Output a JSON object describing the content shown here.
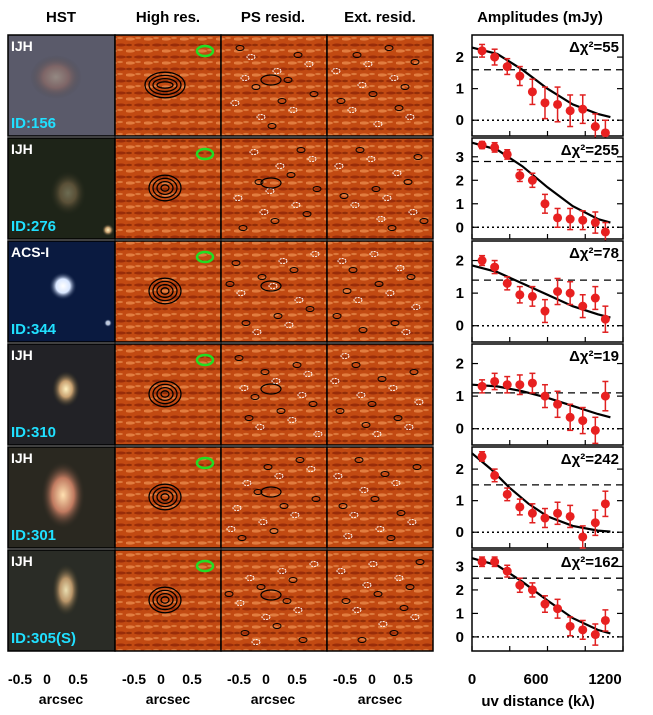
{
  "column_headers": [
    "HST",
    "High res.",
    "PS resid.",
    "Ext. resid.",
    "Amplitudes (mJy)"
  ],
  "x_axis": {
    "image_ticks": [
      "-0.5",
      "0",
      "0.5"
    ],
    "image_label": "arcsec",
    "uv_ticks": [
      "0",
      "600",
      "1200"
    ],
    "uv_label": "uv distance (kλ)"
  },
  "rows": [
    {
      "band": "IJH",
      "id_label": "ID:156",
      "dchi2": "Δχ²=55",
      "hst_color": "#5a5a6a",
      "yticks": [
        "0",
        "1",
        "2"
      ]
    },
    {
      "band": "IJH",
      "id_label": "ID:276",
      "dchi2": "Δχ²=255",
      "hst_color": "#1e2418",
      "yticks": [
        "0",
        "1",
        "2",
        "3"
      ]
    },
    {
      "band": "ACS-I",
      "id_label": "ID:344",
      "dchi2": "Δχ²=78",
      "hst_color": "#0a1a40",
      "yticks": [
        "0",
        "1",
        "2"
      ]
    },
    {
      "band": "IJH",
      "id_label": "ID:310",
      "dchi2": "Δχ²=19",
      "hst_color": "#222226",
      "yticks": [
        "0",
        "1",
        "2"
      ]
    },
    {
      "band": "IJH",
      "id_label": "ID:301",
      "dchi2": "Δχ²=242",
      "hst_color": "#2a2820",
      "yticks": [
        "0",
        "1",
        "2"
      ]
    },
    {
      "band": "IJH",
      "id_label": "ID:305(S)",
      "dchi2": "Δχ²=162",
      "hst_color": "#2a2c26",
      "yticks": [
        "0",
        "1",
        "2",
        "3"
      ]
    }
  ],
  "chart_data": {
    "type": "scatter",
    "xlabel": "uv distance (kλ)",
    "ylabel": "Amplitudes (mJy)",
    "xlim": [
      0,
      1200
    ],
    "panels": [
      {
        "id": "ID:156",
        "ylim": [
          -0.5,
          2.7
        ],
        "dashed_level": 1.6,
        "x": [
          80,
          180,
          280,
          380,
          480,
          580,
          680,
          780,
          880,
          980,
          1060
        ],
        "y": [
          2.2,
          2.0,
          1.7,
          1.4,
          0.9,
          0.55,
          0.5,
          0.3,
          0.35,
          -0.2,
          -0.4
        ],
        "err": [
          0.2,
          0.25,
          0.25,
          0.3,
          0.4,
          0.5,
          0.55,
          0.5,
          0.45,
          0.4,
          0.4
        ],
        "model": [
          [
            0,
            2.3
          ],
          [
            200,
            2.1
          ],
          [
            400,
            1.6
          ],
          [
            600,
            1.0
          ],
          [
            800,
            0.5
          ],
          [
            1000,
            0.2
          ],
          [
            1100,
            0.1
          ]
        ]
      },
      {
        "id": "ID:276",
        "ylim": [
          -0.5,
          3.8
        ],
        "dashed_level": 2.8,
        "x": [
          80,
          180,
          280,
          380,
          480,
          580,
          680,
          780,
          880,
          980,
          1060
        ],
        "y": [
          3.5,
          3.4,
          3.1,
          2.2,
          2.0,
          1.0,
          0.4,
          0.35,
          0.3,
          0.2,
          -0.2
        ],
        "err": [
          0.15,
          0.2,
          0.2,
          0.25,
          0.3,
          0.4,
          0.4,
          0.45,
          0.4,
          0.45,
          0.4
        ],
        "model": [
          [
            0,
            3.6
          ],
          [
            200,
            3.3
          ],
          [
            400,
            2.6
          ],
          [
            600,
            1.7
          ],
          [
            800,
            0.9
          ],
          [
            1000,
            0.35
          ],
          [
            1100,
            0.2
          ]
        ]
      },
      {
        "id": "ID:344",
        "ylim": [
          -0.5,
          2.6
        ],
        "dashed_level": 1.4,
        "x": [
          80,
          180,
          280,
          380,
          480,
          580,
          680,
          780,
          880,
          980,
          1060
        ],
        "y": [
          2.0,
          1.8,
          1.3,
          0.95,
          0.9,
          0.45,
          1.05,
          1.0,
          0.6,
          0.85,
          0.2
        ],
        "err": [
          0.15,
          0.2,
          0.2,
          0.25,
          0.3,
          0.35,
          0.4,
          0.35,
          0.35,
          0.35,
          0.4
        ],
        "model": [
          [
            0,
            1.85
          ],
          [
            200,
            1.65
          ],
          [
            400,
            1.3
          ],
          [
            600,
            0.95
          ],
          [
            800,
            0.6
          ],
          [
            1000,
            0.35
          ],
          [
            1100,
            0.25
          ]
        ]
      },
      {
        "id": "ID:310",
        "ylim": [
          -0.5,
          2.6
        ],
        "dashed_level": 1.1,
        "x": [
          80,
          180,
          280,
          380,
          480,
          580,
          680,
          780,
          880,
          980,
          1060
        ],
        "y": [
          1.3,
          1.45,
          1.35,
          1.35,
          1.4,
          1.0,
          0.75,
          0.35,
          0.25,
          -0.05,
          1.0
        ],
        "err": [
          0.2,
          0.25,
          0.25,
          0.3,
          0.3,
          0.35,
          0.4,
          0.4,
          0.4,
          0.4,
          0.45
        ],
        "model": [
          [
            0,
            1.35
          ],
          [
            200,
            1.3
          ],
          [
            400,
            1.15
          ],
          [
            600,
            0.95
          ],
          [
            800,
            0.7
          ],
          [
            1000,
            0.45
          ],
          [
            1100,
            0.35
          ]
        ]
      },
      {
        "id": "ID:301",
        "ylim": [
          -0.5,
          2.7
        ],
        "dashed_level": 1.5,
        "x": [
          80,
          180,
          280,
          380,
          480,
          580,
          680,
          780,
          880,
          980,
          1060
        ],
        "y": [
          2.4,
          1.8,
          1.2,
          0.8,
          0.6,
          0.45,
          0.6,
          0.5,
          -0.15,
          0.3,
          0.9
        ],
        "err": [
          0.15,
          0.2,
          0.2,
          0.25,
          0.3,
          0.3,
          0.35,
          0.35,
          0.35,
          0.4,
          0.4
        ],
        "model": [
          [
            0,
            2.5
          ],
          [
            150,
            2.0
          ],
          [
            300,
            1.4
          ],
          [
            450,
            0.9
          ],
          [
            600,
            0.5
          ],
          [
            800,
            0.2
          ],
          [
            1000,
            0.05
          ],
          [
            1100,
            0.02
          ]
        ]
      },
      {
        "id": "ID:305(S)",
        "ylim": [
          -0.6,
          3.7
        ],
        "dashed_level": 2.5,
        "x": [
          80,
          180,
          280,
          380,
          480,
          580,
          680,
          780,
          880,
          980,
          1060
        ],
        "y": [
          3.2,
          3.2,
          2.8,
          2.2,
          2.0,
          1.4,
          1.2,
          0.45,
          0.3,
          0.1,
          0.7
        ],
        "err": [
          0.2,
          0.2,
          0.25,
          0.3,
          0.3,
          0.35,
          0.4,
          0.4,
          0.4,
          0.45,
          0.45
        ],
        "model": [
          [
            0,
            3.35
          ],
          [
            200,
            3.05
          ],
          [
            400,
            2.35
          ],
          [
            600,
            1.55
          ],
          [
            800,
            0.8
          ],
          [
            1000,
            0.3
          ],
          [
            1100,
            0.15
          ]
        ]
      }
    ]
  }
}
